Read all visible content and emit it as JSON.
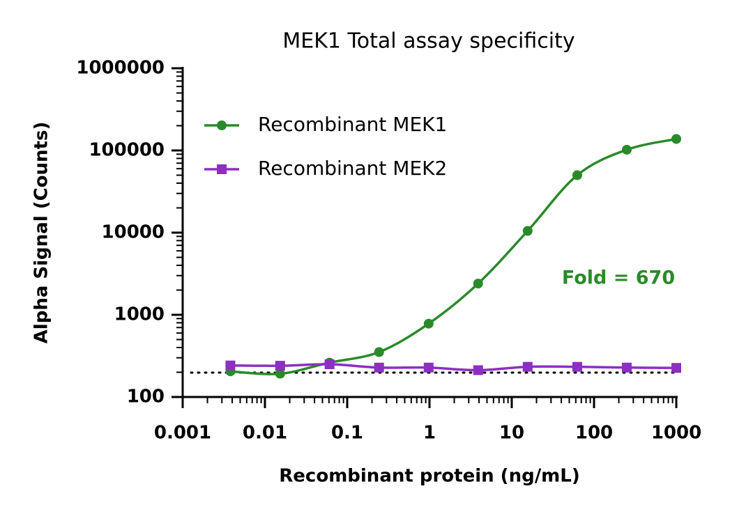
{
  "chart_data": {
    "type": "line",
    "title": "MEK1 Total assay specificity",
    "x_label": "Recombinant protein (ng/mL)",
    "y_label": "Alpha Signal (Counts)",
    "x_scale": "log",
    "y_scale": "log",
    "x": [
      0.0038,
      0.0153,
      0.061,
      0.244,
      0.977,
      3.9,
      15.6,
      62.5,
      250,
      1000
    ],
    "series": [
      {
        "name": "Recombinant MEK1",
        "color": "#2a8a2a",
        "marker": "circle",
        "values": [
          205,
          192,
          262,
          352,
          780,
          2400,
          10500,
          50000,
          102000,
          138000
        ]
      },
      {
        "name": "Recombinant MEK2",
        "color": "#8c2fc2",
        "marker": "square",
        "values": [
          242,
          240,
          250,
          228,
          228,
          212,
          233,
          233,
          228,
          226
        ]
      }
    ],
    "reference_y": 198,
    "annotation": {
      "text": "Fold = 670",
      "color": "#2a8a2a"
    },
    "xlim": [
      0.001,
      1000
    ],
    "xticks": [
      0.001,
      0.01,
      0.1,
      1,
      10,
      100,
      1000
    ],
    "ylim": [
      100,
      1000000
    ],
    "yticks": [
      100,
      1000,
      10000,
      100000,
      1000000
    ],
    "legend": "upper left"
  }
}
